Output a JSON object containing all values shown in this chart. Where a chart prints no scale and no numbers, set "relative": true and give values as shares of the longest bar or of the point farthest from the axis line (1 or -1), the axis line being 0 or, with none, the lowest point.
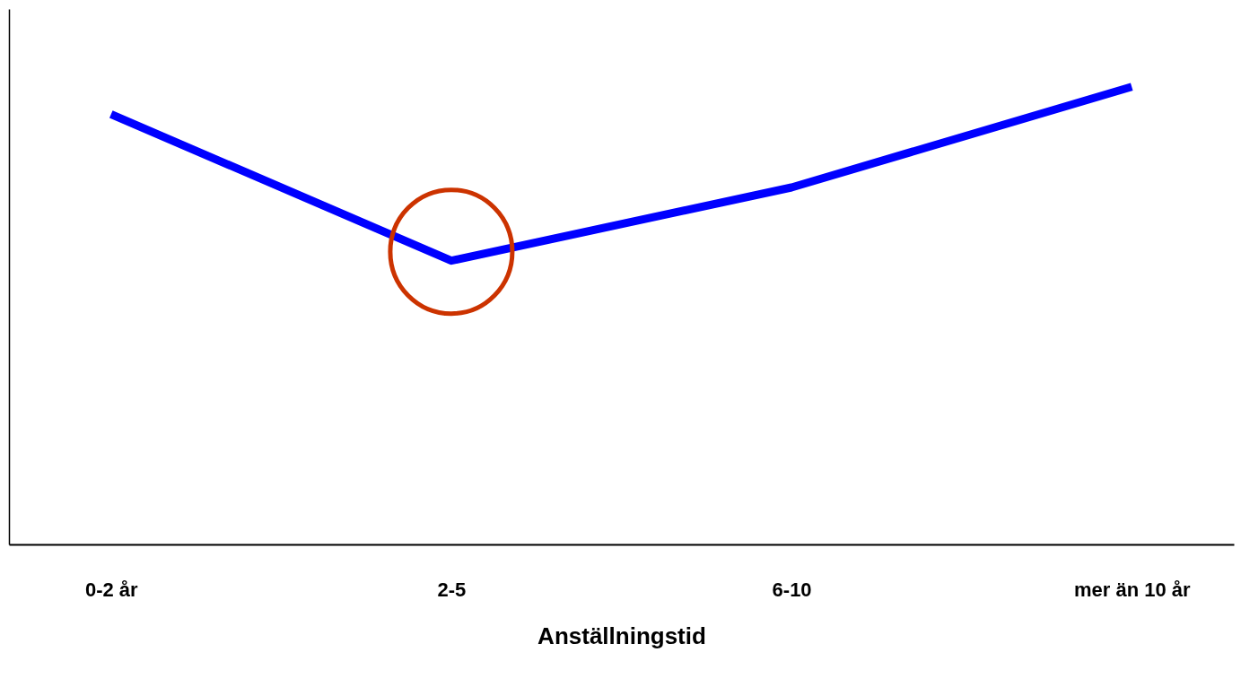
{
  "chart_data": {
    "type": "line",
    "xlabel": "Anställningstid",
    "categories": [
      "0-2 år",
      "2-5",
      "6-10",
      "mer än 10 år"
    ],
    "relative": true,
    "series": [
      {
        "color": "#0000ff",
        "values": [
          0.94,
          0.62,
          0.78,
          1
        ]
      }
    ],
    "marker": "none",
    "line_style": "solid"
  }
}
